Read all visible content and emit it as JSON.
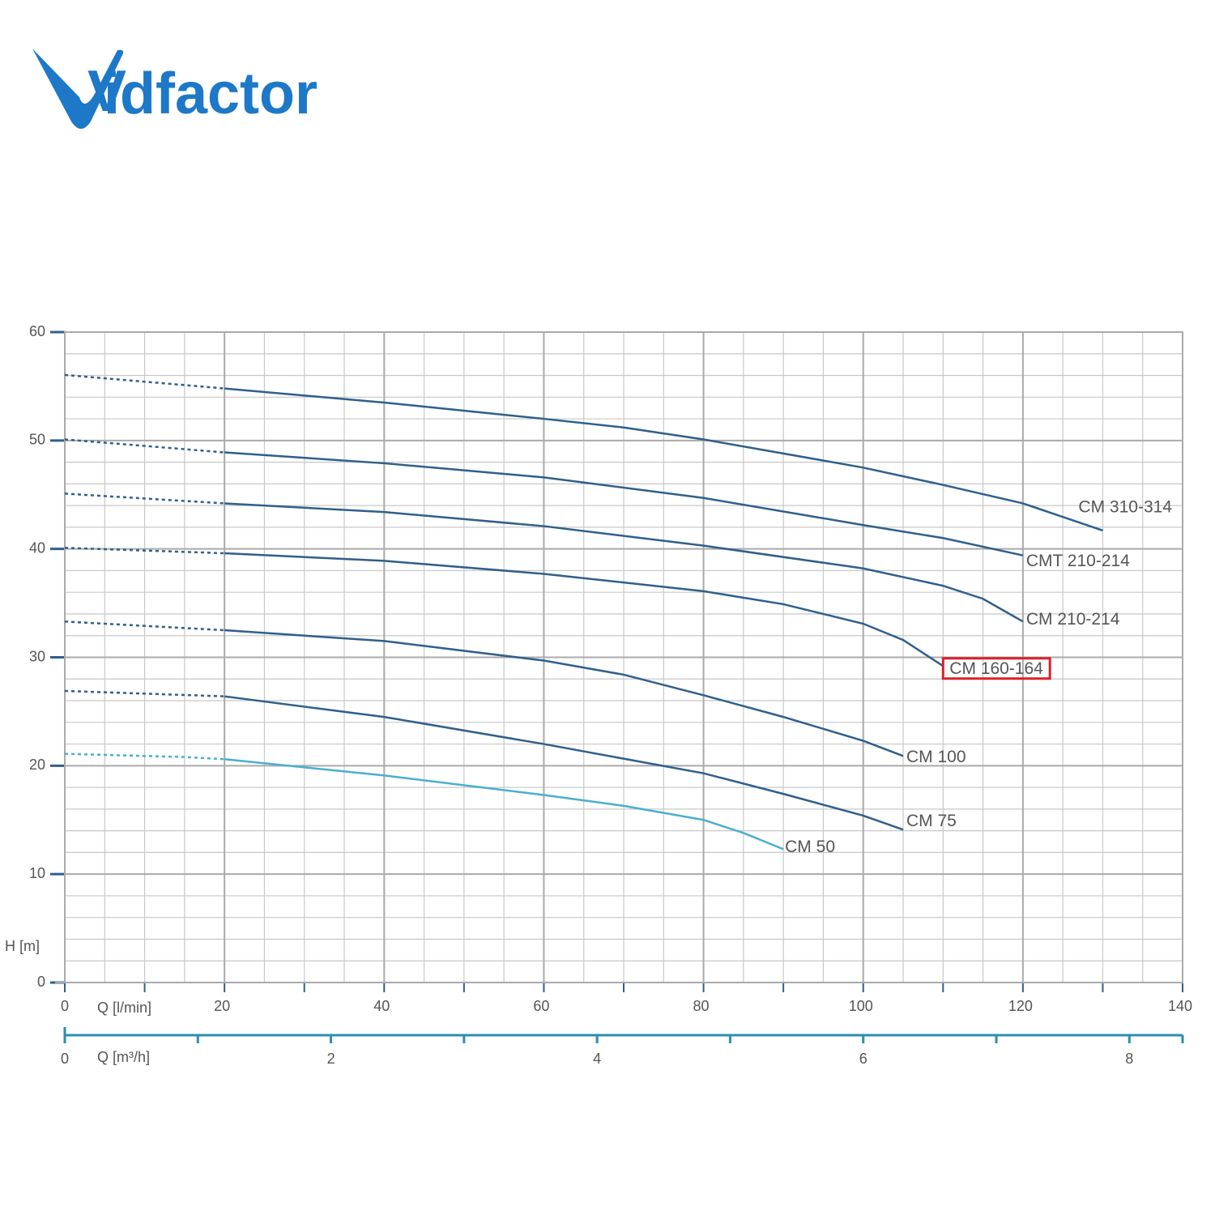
{
  "logo": {
    "mark": "V",
    "text": "idfactor"
  },
  "chart_data": {
    "type": "line",
    "ylabel": "H [m]",
    "xlabel": "Q [l/min]",
    "x2label": "Q [m³/h]",
    "xlim": [
      0,
      140
    ],
    "xticks": [
      0,
      20,
      40,
      60,
      80,
      100,
      120,
      140
    ],
    "x2lim": [
      0,
      8.4
    ],
    "x2ticks": [
      0,
      2,
      4,
      6,
      8
    ],
    "ylim": [
      0,
      60
    ],
    "yticks": [
      0,
      10,
      20,
      30,
      40,
      50,
      60
    ],
    "grid": true,
    "x_minor_step": 5,
    "y_minor_step": 2,
    "dashed_to_x": 20,
    "series": [
      {
        "name": "CM 310-314",
        "color": "#2f5f8c",
        "x": [
          0,
          20,
          40,
          60,
          70,
          80,
          90,
          100,
          110,
          120,
          130
        ],
        "values": [
          56.05,
          54.8,
          53.5,
          52.0,
          51.2,
          50.1,
          48.8,
          47.5,
          45.9,
          44.2,
          41.7
        ]
      },
      {
        "name": "CMT 210-214",
        "color": "#2f5f8c",
        "x": [
          0,
          20,
          40,
          60,
          80,
          100,
          110,
          120
        ],
        "values": [
          50.1,
          48.9,
          47.9,
          46.6,
          44.7,
          42.2,
          41.0,
          39.4
        ]
      },
      {
        "name": "CM 210-214",
        "color": "#2f5f8c",
        "x": [
          0,
          20,
          40,
          60,
          80,
          100,
          110,
          115,
          120
        ],
        "values": [
          45.1,
          44.2,
          43.4,
          42.1,
          40.3,
          38.2,
          36.6,
          35.4,
          33.3
        ]
      },
      {
        "name": "CM 160-164",
        "color": "#2f5f8c",
        "highlighted": true,
        "x": [
          0,
          20,
          40,
          60,
          80,
          90,
          100,
          105,
          110
        ],
        "values": [
          40.1,
          39.6,
          38.9,
          37.7,
          36.1,
          34.9,
          33.1,
          31.6,
          29.2
        ]
      },
      {
        "name": "CM 100",
        "color": "#2f5f8c",
        "x": [
          0,
          20,
          40,
          60,
          70,
          80,
          90,
          100,
          105
        ],
        "values": [
          33.3,
          32.5,
          31.5,
          29.7,
          28.4,
          26.5,
          24.5,
          22.3,
          20.9
        ]
      },
      {
        "name": "CM 75",
        "color": "#2f5f8c",
        "x": [
          0,
          20,
          40,
          60,
          80,
          90,
          100,
          105
        ],
        "values": [
          26.9,
          26.4,
          24.5,
          22.0,
          19.3,
          17.4,
          15.4,
          14.1
        ]
      },
      {
        "name": "CM 50",
        "color": "#4aaed0",
        "x": [
          0,
          15,
          20,
          40,
          60,
          70,
          80,
          85,
          90
        ],
        "values": [
          21.1,
          20.8,
          20.6,
          19.1,
          17.3,
          16.3,
          15.0,
          13.8,
          12.3
        ]
      }
    ]
  }
}
